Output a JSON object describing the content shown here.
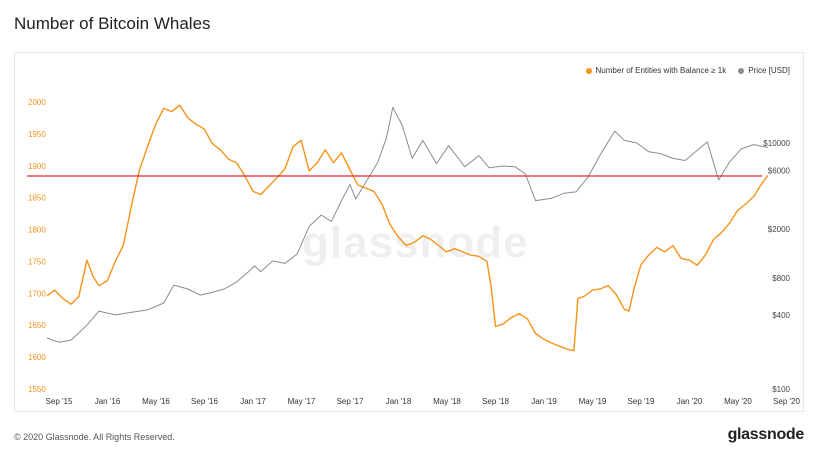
{
  "header": {
    "title": "Number of Bitcoin Whales"
  },
  "footer": {
    "copyright": "© 2020 Glassnode. All Rights Reserved.",
    "logo": "glassnode"
  },
  "watermark": "glassnode",
  "colors": {
    "entities": "#f7931a",
    "price": "#8c8c8c",
    "threshold": "#e8232f",
    "axis_left": "#f7931a",
    "axis_right": "#444444"
  },
  "chart_data": {
    "type": "line",
    "title": "Number of Bitcoin Whales",
    "legend_position": "top-right",
    "grid": false,
    "x_ticks": [
      "Sep '15",
      "Jan '16",
      "May '16",
      "Sep '16",
      "Jan '17",
      "May '17",
      "Sep '17",
      "Jan '18",
      "May '18",
      "Sep '18",
      "Jan '19",
      "May '19",
      "Sep '19",
      "Jan '20",
      "May '20",
      "Sep '20"
    ],
    "y_left": {
      "ticks": [
        1550,
        1600,
        1650,
        1700,
        1750,
        1800,
        1850,
        1900,
        1950,
        2000
      ],
      "range": [
        1550,
        2010
      ]
    },
    "y_right": {
      "scale": "log",
      "ticks": [
        100,
        400,
        800,
        2000,
        6000,
        10000
      ],
      "tick_labels": [
        "$100",
        "$400",
        "$800",
        "$2000",
        "$6000",
        "$10000"
      ],
      "range": [
        100,
        20000
      ]
    },
    "threshold_line": {
      "axis": "left",
      "value": 1884
    },
    "series": [
      {
        "name": "Number of Entities with Balance ≥ 1k",
        "axis": "left",
        "points": [
          [
            "2015-08-01",
            1696
          ],
          [
            "2015-08-20",
            1705
          ],
          [
            "2015-09-10",
            1692
          ],
          [
            "2015-10-01",
            1683
          ],
          [
            "2015-10-20",
            1695
          ],
          [
            "2015-11-10",
            1752
          ],
          [
            "2015-11-25",
            1727
          ],
          [
            "2015-12-10",
            1712
          ],
          [
            "2016-01-01",
            1720
          ],
          [
            "2016-01-20",
            1750
          ],
          [
            "2016-02-10",
            1775
          ],
          [
            "2016-03-01",
            1840
          ],
          [
            "2016-03-20",
            1893
          ],
          [
            "2016-04-10",
            1930
          ],
          [
            "2016-04-30",
            1965
          ],
          [
            "2016-05-20",
            1990
          ],
          [
            "2016-06-10",
            1985
          ],
          [
            "2016-06-30",
            1995
          ],
          [
            "2016-07-20",
            1975
          ],
          [
            "2016-08-10",
            1965
          ],
          [
            "2016-08-30",
            1958
          ],
          [
            "2016-09-20",
            1935
          ],
          [
            "2016-10-10",
            1925
          ],
          [
            "2016-11-01",
            1910
          ],
          [
            "2016-11-20",
            1905
          ],
          [
            "2016-12-10",
            1885
          ],
          [
            "2017-01-01",
            1860
          ],
          [
            "2017-01-20",
            1855
          ],
          [
            "2017-02-10",
            1868
          ],
          [
            "2017-03-01",
            1882
          ],
          [
            "2017-03-20",
            1895
          ],
          [
            "2017-04-10",
            1930
          ],
          [
            "2017-04-30",
            1940
          ],
          [
            "2017-05-20",
            1892
          ],
          [
            "2017-06-10",
            1905
          ],
          [
            "2017-06-30",
            1925
          ],
          [
            "2017-07-20",
            1905
          ],
          [
            "2017-08-10",
            1920
          ],
          [
            "2017-08-30",
            1895
          ],
          [
            "2017-09-20",
            1870
          ],
          [
            "2017-10-10",
            1865
          ],
          [
            "2017-10-30",
            1860
          ],
          [
            "2017-11-20",
            1840
          ],
          [
            "2017-12-10",
            1808
          ],
          [
            "2018-01-01",
            1788
          ],
          [
            "2018-01-20",
            1775
          ],
          [
            "2018-02-10",
            1780
          ],
          [
            "2018-03-01",
            1790
          ],
          [
            "2018-03-20",
            1785
          ],
          [
            "2018-04-10",
            1775
          ],
          [
            "2018-04-30",
            1765
          ],
          [
            "2018-05-20",
            1770
          ],
          [
            "2018-06-10",
            1765
          ],
          [
            "2018-06-30",
            1760
          ],
          [
            "2018-07-20",
            1758
          ],
          [
            "2018-08-10",
            1750
          ],
          [
            "2018-08-20",
            1710
          ],
          [
            "2018-09-01",
            1648
          ],
          [
            "2018-09-20",
            1652
          ],
          [
            "2018-10-10",
            1662
          ],
          [
            "2018-10-30",
            1668
          ],
          [
            "2018-11-20",
            1660
          ],
          [
            "2018-12-10",
            1637
          ],
          [
            "2019-01-01",
            1628
          ],
          [
            "2019-01-20",
            1622
          ],
          [
            "2019-02-10",
            1617
          ],
          [
            "2019-03-01",
            1612
          ],
          [
            "2019-03-15",
            1610
          ],
          [
            "2019-03-25",
            1692
          ],
          [
            "2019-04-10",
            1695
          ],
          [
            "2019-05-01",
            1705
          ],
          [
            "2019-05-20",
            1707
          ],
          [
            "2019-06-10",
            1712
          ],
          [
            "2019-06-30",
            1698
          ],
          [
            "2019-07-20",
            1675
          ],
          [
            "2019-08-01",
            1672
          ],
          [
            "2019-08-15",
            1710
          ],
          [
            "2019-09-01",
            1745
          ],
          [
            "2019-09-20",
            1760
          ],
          [
            "2019-10-10",
            1772
          ],
          [
            "2019-10-30",
            1765
          ],
          [
            "2019-11-20",
            1775
          ],
          [
            "2019-12-10",
            1755
          ],
          [
            "2020-01-01",
            1752
          ],
          [
            "2020-01-20",
            1744
          ],
          [
            "2020-02-10",
            1760
          ],
          [
            "2020-03-01",
            1785
          ],
          [
            "2020-03-20",
            1795
          ],
          [
            "2020-04-10",
            1810
          ],
          [
            "2020-04-30",
            1830
          ],
          [
            "2020-05-20",
            1840
          ],
          [
            "2020-06-10",
            1852
          ],
          [
            "2020-06-30",
            1872
          ],
          [
            "2020-07-15",
            1885
          ]
        ]
      },
      {
        "name": "Price [USD]",
        "axis": "right",
        "points": [
          [
            "2015-08-01",
            260
          ],
          [
            "2015-09-01",
            240
          ],
          [
            "2015-10-01",
            250
          ],
          [
            "2015-11-10",
            330
          ],
          [
            "2015-12-10",
            430
          ],
          [
            "2016-01-20",
            400
          ],
          [
            "2016-03-01",
            420
          ],
          [
            "2016-04-10",
            440
          ],
          [
            "2016-05-20",
            500
          ],
          [
            "2016-06-15",
            700
          ],
          [
            "2016-07-20",
            650
          ],
          [
            "2016-08-20",
            580
          ],
          [
            "2016-09-20",
            610
          ],
          [
            "2016-10-20",
            650
          ],
          [
            "2016-11-20",
            740
          ],
          [
            "2016-12-20",
            900
          ],
          [
            "2017-01-05",
            1000
          ],
          [
            "2017-01-20",
            900
          ],
          [
            "2017-02-20",
            1100
          ],
          [
            "2017-03-20",
            1050
          ],
          [
            "2017-04-20",
            1250
          ],
          [
            "2017-05-20",
            2100
          ],
          [
            "2017-06-20",
            2600
          ],
          [
            "2017-07-15",
            2300
          ],
          [
            "2017-08-10",
            3400
          ],
          [
            "2017-09-01",
            4600
          ],
          [
            "2017-09-15",
            3500
          ],
          [
            "2017-10-10",
            4800
          ],
          [
            "2017-11-10",
            7000
          ],
          [
            "2017-12-01",
            11000
          ],
          [
            "2017-12-17",
            19500
          ],
          [
            "2018-01-10",
            14000
          ],
          [
            "2018-02-05",
            7500
          ],
          [
            "2018-03-01",
            10500
          ],
          [
            "2018-04-05",
            6800
          ],
          [
            "2018-05-05",
            9500
          ],
          [
            "2018-06-15",
            6400
          ],
          [
            "2018-07-20",
            7900
          ],
          [
            "2018-08-15",
            6300
          ],
          [
            "2018-09-20",
            6500
          ],
          [
            "2018-10-20",
            6400
          ],
          [
            "2018-11-15",
            5600
          ],
          [
            "2018-12-10",
            3400
          ],
          [
            "2019-01-20",
            3550
          ],
          [
            "2019-02-20",
            3900
          ],
          [
            "2019-03-20",
            4000
          ],
          [
            "2019-04-20",
            5300
          ],
          [
            "2019-05-20",
            8000
          ],
          [
            "2019-06-26",
            12500
          ],
          [
            "2019-07-20",
            10500
          ],
          [
            "2019-08-20",
            10000
          ],
          [
            "2019-09-20",
            8500
          ],
          [
            "2019-10-20",
            8200
          ],
          [
            "2019-11-20",
            7500
          ],
          [
            "2019-12-20",
            7200
          ],
          [
            "2020-01-20",
            8700
          ],
          [
            "2020-02-15",
            10200
          ],
          [
            "2020-03-13",
            5000
          ],
          [
            "2020-04-10",
            7000
          ],
          [
            "2020-05-10",
            9000
          ],
          [
            "2020-06-10",
            9700
          ],
          [
            "2020-07-15",
            9200
          ]
        ]
      }
    ]
  }
}
